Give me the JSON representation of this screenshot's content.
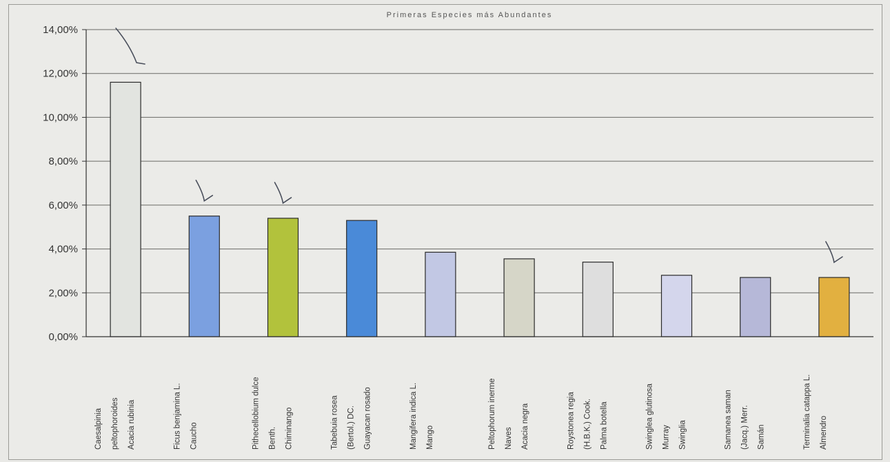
{
  "chart_data": {
    "type": "bar",
    "title": "Primeras Especies más Abundantes",
    "xlabel": "",
    "ylabel": "",
    "ylim": [
      0,
      14
    ],
    "y_ticks": [
      {
        "value": 0,
        "label": "0,00%"
      },
      {
        "value": 2,
        "label": "2,00%"
      },
      {
        "value": 4,
        "label": "4,00%"
      },
      {
        "value": 6,
        "label": "6,00%"
      },
      {
        "value": 8,
        "label": "8,00%"
      },
      {
        "value": 10,
        "label": "10,00%"
      },
      {
        "value": 12,
        "label": "12,00%"
      },
      {
        "value": 14,
        "label": "14,00%"
      }
    ],
    "grid": true,
    "categories": [
      [
        "Caesalpinia",
        "peltophoroides",
        "Acacia rubinia"
      ],
      [
        "Ficus benjamina L.",
        "Caucho"
      ],
      [
        "Pithecellobium dulce",
        "Benth.",
        "Chiminango"
      ],
      [
        "Tabebuia rosea",
        "(Bertol.) DC.",
        "Guayacan rosado"
      ],
      [
        "Mangifera indica L.",
        "Mango"
      ],
      [
        "Peltophorum inerme",
        "Naves",
        "Acacia negra"
      ],
      [
        "Roystonea regia",
        "(H.B.K.) Cook.",
        "Palma botella"
      ],
      [
        "Swinglea glutinosa",
        "Murray",
        "Swinglia"
      ],
      [
        "Samanea saman",
        "(Jacq.) Merr.",
        "Samán"
      ],
      [
        "Terminalia catappa L.",
        "Almendro"
      ]
    ],
    "values": [
      11.6,
      5.5,
      5.4,
      5.3,
      3.85,
      3.55,
      3.4,
      2.8,
      2.7,
      2.7
    ],
    "bar_colors": [
      "#e2e4e0",
      "#7ba0e0",
      "#b2c23c",
      "#4a8ad8",
      "#c2c8e4",
      "#d6d6c8",
      "#dedede",
      "#d4d6ec",
      "#b6b8d8",
      "#e2b040"
    ],
    "checkmarks": [
      0,
      1,
      2,
      9
    ]
  }
}
